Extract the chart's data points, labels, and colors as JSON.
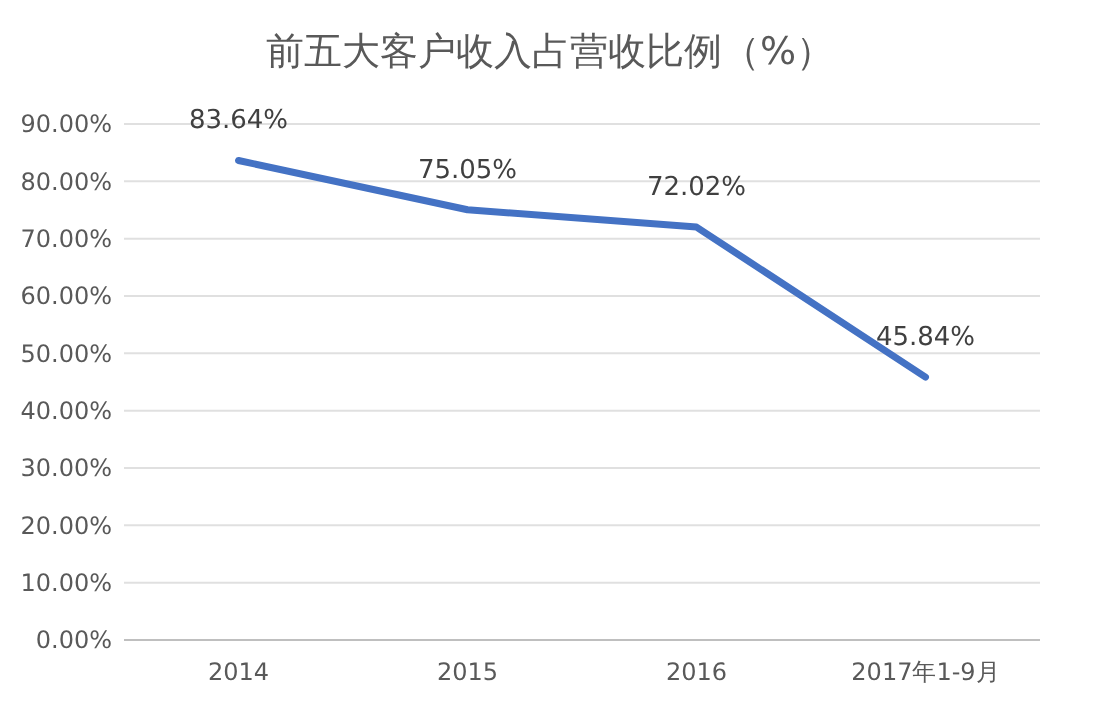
{
  "chart_data": {
    "type": "line",
    "title": "前五大客户收入占营收比例（%）",
    "categories": [
      "2014",
      "2015",
      "2016",
      "2017年1-9月"
    ],
    "series": [
      {
        "color": "#4472c4",
        "values": [
          83.64,
          75.05,
          72.02,
          45.84
        ],
        "value_labels": [
          "83.64%",
          "75.05%",
          "72.02%",
          "45.84%"
        ]
      }
    ],
    "ylim": [
      0,
      90
    ],
    "yticks": [
      {
        "value": 0,
        "label": "0.00%"
      },
      {
        "value": 10,
        "label": "10.00%"
      },
      {
        "value": 20,
        "label": "20.00%"
      },
      {
        "value": 30,
        "label": "30.00%"
      },
      {
        "value": 40,
        "label": "40.00%"
      },
      {
        "value": 50,
        "label": "50.00%"
      },
      {
        "value": 60,
        "label": "60.00%"
      },
      {
        "value": 70,
        "label": "70.00%"
      },
      {
        "value": 80,
        "label": "80.00%"
      },
      {
        "value": 90,
        "label": "90.00%"
      }
    ],
    "grid": "y",
    "marker": "none",
    "line_style": "solid"
  }
}
